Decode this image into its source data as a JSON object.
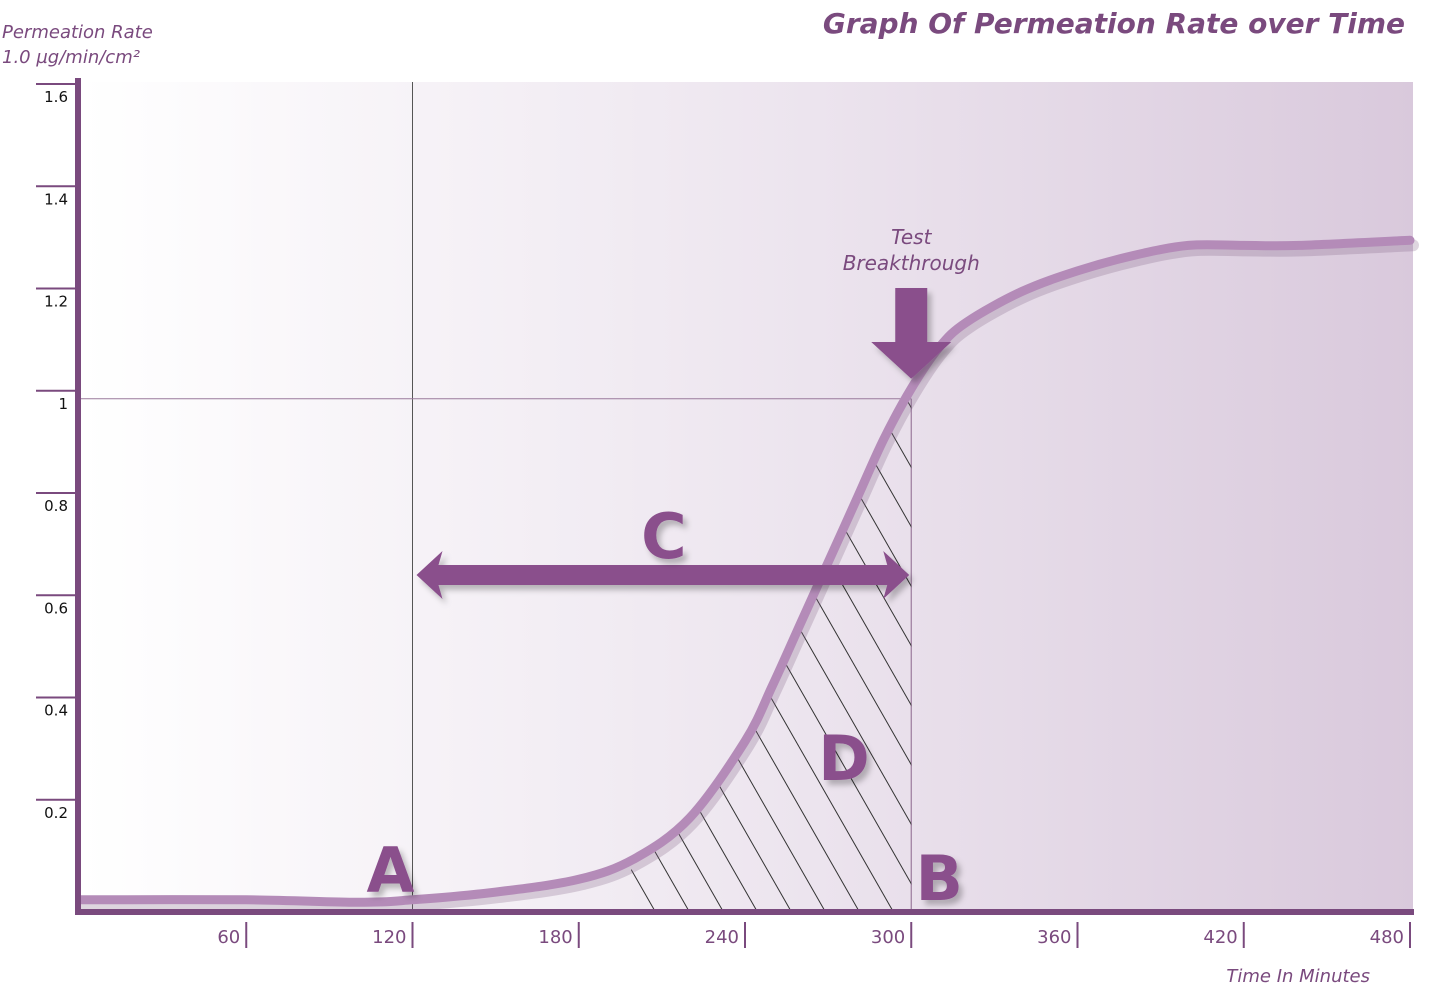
{
  "chart_data": {
    "type": "line",
    "title": "Graph Of Permeation Rate over Time",
    "ylabel_lines": [
      "Permeation Rate",
      "1.0 µg/min/cm²"
    ],
    "xlabel": "Time In Minutes",
    "xlim": [
      0,
      480
    ],
    "ylim": [
      0,
      1.6
    ],
    "x_ticks": [
      60,
      120,
      180,
      240,
      300,
      360,
      420,
      480
    ],
    "x_tick_labels": [
      "60",
      "120",
      "180",
      "240",
      "300",
      "360",
      "420",
      "480"
    ],
    "y_ticks": [
      0.2,
      0.4,
      0.6,
      0.8,
      1.0,
      1.2,
      1.4,
      1.6
    ],
    "y_tick_labels": [
      "0.2",
      "0.4",
      "0.6",
      "0.8",
      "1",
      "1.2",
      "1.4",
      "1.6"
    ],
    "series": [
      {
        "x": [
          0,
          60,
          100,
          120,
          150,
          180,
          200,
          220,
          240,
          250,
          260,
          270,
          280,
          290,
          300,
          310,
          320,
          340,
          360,
          380,
          400,
          420,
          440,
          480
        ],
        "y": [
          0.02,
          0.02,
          0.015,
          0.02,
          0.035,
          0.06,
          0.1,
          0.18,
          0.33,
          0.44,
          0.56,
          0.68,
          0.8,
          0.92,
          1.02,
          1.1,
          1.15,
          1.21,
          1.25,
          1.28,
          1.3,
          1.3,
          1.3,
          1.31
        ],
        "color": "#b48bb8"
      }
    ],
    "reference_lines": {
      "vertical_x": [
        120,
        300
      ],
      "horizontal_y": 1.0
    },
    "annotations": {
      "breakthrough_label_lines": [
        "Test",
        "Breakthrough"
      ],
      "breakthrough_x": 300,
      "point_A_label": "A",
      "point_A_x": 120,
      "point_B_label": "B",
      "point_B_x": 300,
      "span_C_label": "C",
      "span_C_from": 120,
      "span_C_to": 300,
      "area_D_label": "D"
    },
    "colors": {
      "accent": "#8a4f8c",
      "axis": "#7a4a7e",
      "curve": "#b48bb8",
      "background_left": "#ffffff",
      "background_right": "#dccddf"
    },
    "grid": false
  }
}
